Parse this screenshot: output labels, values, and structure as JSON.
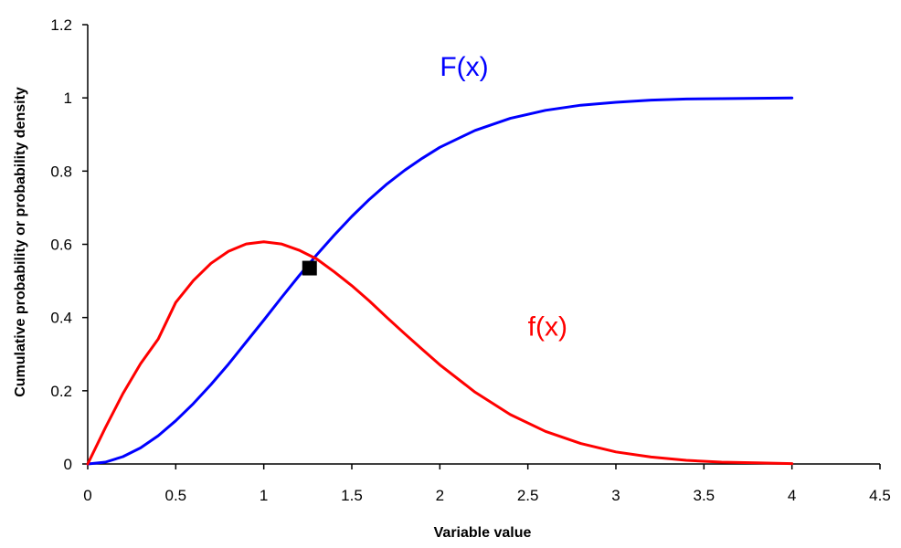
{
  "chart_data": {
    "type": "line",
    "xlabel": "Variable value",
    "ylabel": "Cumulative probability or probability density",
    "xlim": [
      0,
      4.5
    ],
    "ylim": [
      0,
      1.2
    ],
    "x_ticks": [
      "0",
      "0.5",
      "1",
      "1.5",
      "2",
      "2.5",
      "3",
      "3.5",
      "4",
      "4.5"
    ],
    "y_ticks": [
      "0",
      "0.2",
      "0.4",
      "0.6",
      "0.8",
      "1",
      "1.2"
    ],
    "grid": false,
    "legend": "none",
    "series": [
      {
        "name": "F(x)",
        "color": "#0000ff",
        "x": [
          0,
          0.1,
          0.2,
          0.3,
          0.4,
          0.5,
          0.6,
          0.7,
          0.8,
          0.9,
          1.0,
          1.1,
          1.2,
          1.3,
          1.4,
          1.5,
          1.6,
          1.7,
          1.8,
          1.9,
          2.0,
          2.2,
          2.4,
          2.6,
          2.8,
          3.0,
          3.2,
          3.4,
          3.6,
          3.8,
          4.0
        ],
        "y": [
          0,
          0.005,
          0.02,
          0.044,
          0.077,
          0.118,
          0.165,
          0.217,
          0.273,
          0.333,
          0.393,
          0.454,
          0.514,
          0.571,
          0.625,
          0.676,
          0.723,
          0.765,
          0.802,
          0.835,
          0.865,
          0.911,
          0.944,
          0.966,
          0.98,
          0.988,
          0.994,
          0.997,
          0.998,
          0.999,
          1.0
        ]
      },
      {
        "name": "f(x)",
        "color": "#ff0000",
        "x": [
          0,
          0.1,
          0.2,
          0.3,
          0.4,
          0.5,
          0.6,
          0.7,
          0.8,
          0.9,
          1.0,
          1.1,
          1.2,
          1.3,
          1.4,
          1.5,
          1.6,
          1.7,
          1.8,
          1.9,
          2.0,
          2.2,
          2.4,
          2.6,
          2.8,
          3.0,
          3.2,
          3.4,
          3.6,
          3.8,
          4.0
        ],
        "y": [
          0,
          0.099,
          0.192,
          0.274,
          0.341,
          0.441,
          0.501,
          0.548,
          0.581,
          0.601,
          0.607,
          0.601,
          0.584,
          0.56,
          0.525,
          0.487,
          0.445,
          0.4,
          0.356,
          0.313,
          0.271,
          0.196,
          0.135,
          0.089,
          0.056,
          0.033,
          0.019,
          0.01,
          0.005,
          0.003,
          0.001
        ]
      }
    ],
    "annotations": [
      {
        "text": "F(x)",
        "x": 2.0,
        "y": 1.06,
        "color": "#0000ff"
      },
      {
        "text": "f(x)",
        "x": 2.5,
        "y": 0.35,
        "color": "#ff0000"
      }
    ],
    "markers": [
      {
        "shape": "square",
        "x": 1.26,
        "y": 0.535,
        "color": "#000000"
      }
    ]
  }
}
